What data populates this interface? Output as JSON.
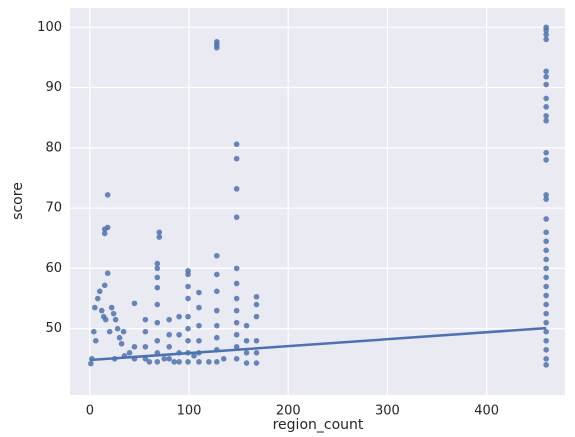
{
  "chart_data": {
    "type": "scatter",
    "x_label": "region_count",
    "y_label": "score",
    "xlim": [
      -20,
      479
    ],
    "ylim": [
      39,
      103.2
    ],
    "xticks": [
      0,
      100,
      200,
      300,
      400
    ],
    "yticks": [
      50,
      60,
      70,
      80,
      90,
      100
    ],
    "grid": true,
    "series": [
      {
        "color": "#4c72b0",
        "x": [
          460,
          460,
          460,
          460,
          460,
          460,
          460,
          460,
          460,
          460,
          460,
          460,
          460,
          460,
          460,
          460,
          460,
          460,
          460,
          460,
          460,
          460,
          460,
          460,
          460,
          460,
          460,
          460,
          460,
          460,
          460,
          460,
          148,
          148,
          148,
          148,
          148,
          148,
          148,
          148,
          148,
          148,
          148,
          148,
          128,
          128,
          128,
          128,
          128,
          128,
          128,
          128,
          128,
          128,
          128,
          168,
          168,
          168,
          168,
          168,
          168,
          158,
          158,
          158,
          158,
          99,
          99,
          99,
          99,
          99,
          99,
          99,
          99,
          99,
          110,
          110,
          110,
          110,
          110,
          110,
          68,
          68,
          68,
          68,
          68,
          68,
          68,
          68,
          68,
          70,
          70,
          80,
          80,
          80,
          80,
          90,
          90,
          90,
          90,
          56,
          56,
          56,
          56,
          45,
          45,
          45,
          18,
          18,
          18,
          15,
          15,
          15,
          5,
          8,
          10,
          12,
          14,
          16,
          20,
          22,
          24,
          26,
          28,
          30,
          32,
          34,
          4,
          6,
          2,
          1,
          25,
          35,
          40,
          60,
          75,
          85,
          105,
          120,
          135
        ],
        "values": [
          100,
          99.5,
          98.8,
          98,
          92.7,
          91.8,
          90.5,
          88.2,
          86.8,
          85.3,
          84.5,
          79.2,
          78,
          72.2,
          71.5,
          68.2,
          66,
          64.5,
          63,
          61.5,
          60,
          58.5,
          57,
          55.5,
          54,
          52.5,
          51,
          49.5,
          48,
          46.5,
          45,
          44,
          80.6,
          78.2,
          73.2,
          68.5,
          60,
          57.5,
          55,
          53,
          51,
          49,
          47,
          45,
          97.6,
          97.1,
          96.6,
          62.1,
          59,
          56.2,
          53,
          50.5,
          48.5,
          46.5,
          44.5,
          55.3,
          54,
          52,
          48,
          46,
          44.3,
          50.5,
          48,
          46,
          44.3,
          59.6,
          59,
          57,
          55,
          52,
          50,
          48,
          46,
          44.5,
          56,
          53.5,
          50.5,
          48,
          46,
          44.5,
          60.8,
          60,
          58.5,
          56.8,
          54,
          51,
          48,
          46,
          44.5,
          66,
          65.2,
          51.5,
          49,
          47,
          45,
          52,
          49,
          46,
          44.5,
          51.5,
          49.5,
          47,
          45,
          54.2,
          47,
          45,
          72.2,
          66.8,
          59.2,
          66.5,
          65.8,
          57.2,
          53.5,
          55,
          56.2,
          53,
          52,
          51.5,
          49.5,
          53.5,
          52.5,
          51.5,
          50,
          48.5,
          47.5,
          49.5,
          49.5,
          48,
          45,
          44.2,
          45,
          45.5,
          46,
          44.5,
          45,
          44.5,
          45.5,
          44.5,
          45
        ]
      }
    ],
    "trend_line": {
      "color": "#4c72b0",
      "x": [
        0,
        460
      ],
      "values": [
        44.8,
        50.1
      ]
    }
  }
}
